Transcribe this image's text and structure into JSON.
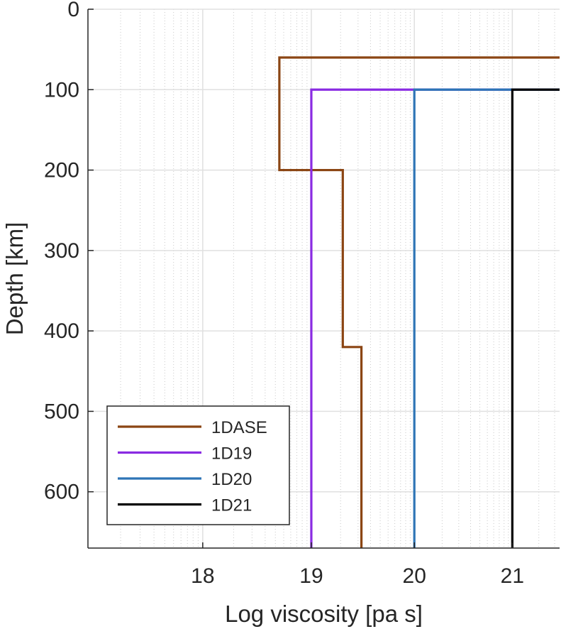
{
  "chart_data": {
    "type": "line",
    "xlabel": "Log viscosity [pa s]",
    "ylabel": "Depth [km]",
    "xscale": "log",
    "ylim": [
      0,
      670
    ],
    "y_reversed": true,
    "xlim": [
      17.0,
      21.5
    ],
    "xticks": [
      "18",
      "19",
      "20",
      "21"
    ],
    "yticks": [
      "0",
      "100",
      "200",
      "300",
      "400",
      "500",
      "600"
    ],
    "grid": true,
    "minor_grid": true,
    "legend_position": "bottom-left",
    "series": [
      {
        "name": "1DASE",
        "color": "#8B4513",
        "points": [
          [
            21.5,
            60
          ],
          [
            18.7,
            60
          ],
          [
            18.7,
            200
          ],
          [
            19.3,
            200
          ],
          [
            19.3,
            420
          ],
          [
            19.48,
            420
          ],
          [
            19.48,
            670
          ]
        ]
      },
      {
        "name": "1D19",
        "color": "#8A2BE2",
        "points": [
          [
            21.5,
            100
          ],
          [
            19.0,
            100
          ],
          [
            19.0,
            670
          ]
        ]
      },
      {
        "name": "1D20",
        "color": "#2E75B6",
        "points": [
          [
            21.5,
            100
          ],
          [
            20.0,
            100
          ],
          [
            20.0,
            670
          ]
        ]
      },
      {
        "name": "1D21",
        "color": "#000000",
        "points": [
          [
            21.5,
            100
          ],
          [
            21.0,
            100
          ],
          [
            21.0,
            670
          ]
        ]
      }
    ]
  }
}
